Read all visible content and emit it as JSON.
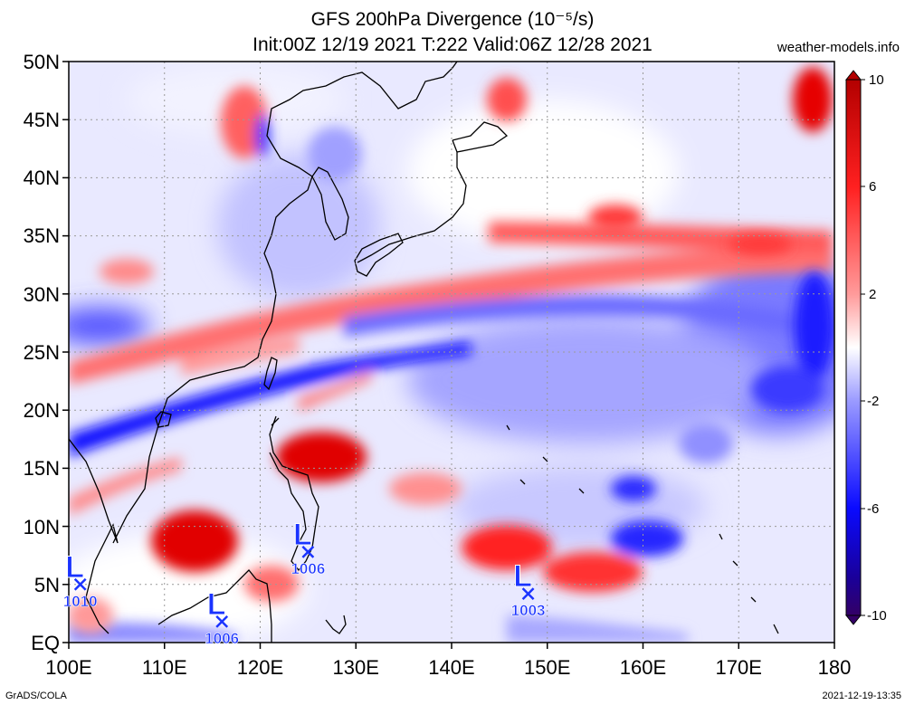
{
  "header": {
    "title_line1": "GFS 200hPa Divergence (10⁻⁵/s)",
    "title_line2": "Init:00Z 12/19 2021 T:222 Valid:06Z 12/28 2021",
    "site": "weather-models.info"
  },
  "footer": {
    "credit": "GrADS/COLA",
    "timestamp": "2021-12-19-13:35"
  },
  "map": {
    "lon_range": [
      100,
      180
    ],
    "lat_range": [
      0,
      50
    ],
    "lon_ticks": [
      "100E",
      "110E",
      "120E",
      "130E",
      "140E",
      "150E",
      "160E",
      "170E",
      "180"
    ],
    "lat_ticks": [
      "EQ",
      "5N",
      "10N",
      "15N",
      "20N",
      "25N",
      "30N",
      "35N",
      "40N",
      "45N",
      "50N"
    ],
    "colorbar": {
      "range": [
        -10,
        10
      ],
      "labels": [
        "10",
        "6",
        "2",
        "-2",
        "-6",
        "-10"
      ],
      "colors": [
        "#2d0066",
        "#0000cc",
        "#3d3dff",
        "#8f8fff",
        "#d4d4ff",
        "#ffffff",
        "#ffd4d4",
        "#ff8f8f",
        "#ff3d3d",
        "#e00000",
        "#b30000"
      ]
    },
    "pressure_systems": [
      {
        "letter": "L",
        "pressure": "1010",
        "lon": 101.2,
        "lat": 5.0
      },
      {
        "letter": "L",
        "pressure": "1006",
        "lon": 116.0,
        "lat": 1.8
      },
      {
        "letter": "L",
        "pressure": "1006",
        "lon": 125.0,
        "lat": 7.8
      },
      {
        "letter": "L",
        "pressure": "1003",
        "lon": 148.0,
        "lat": 4.2
      }
    ]
  }
}
